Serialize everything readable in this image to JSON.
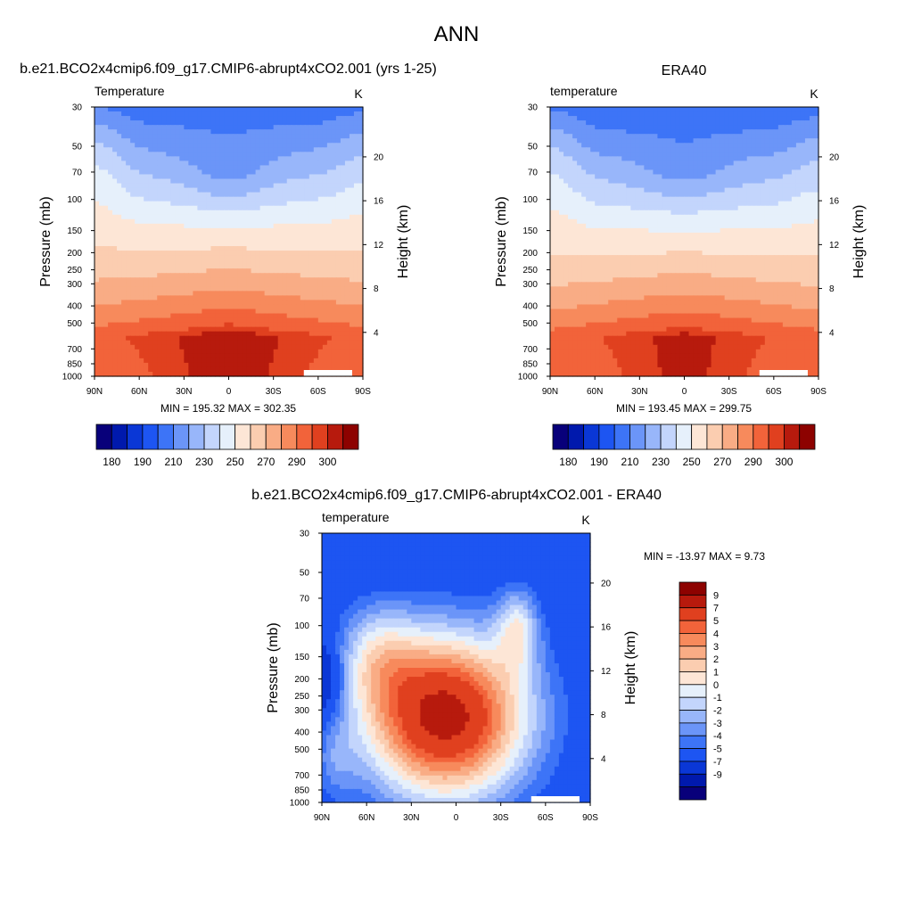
{
  "figure": {
    "season": "ANN",
    "top_left_title": "b.e21.BCO2x4cmip6.f09_g17.CMIP6-abrupt4xCO2.001 (yrs 1-25)",
    "top_right_title": "ERA40",
    "bottom_title": "b.e21.BCO2x4cmip6.f09_g17.CMIP6-abrupt4xCO2.001 - ERA40"
  },
  "chart_data": [
    {
      "type": "heatmap",
      "id": "model",
      "title": "b.e21.BCO2x4cmip6.f09_g17.CMIP6-abrupt4xCO2.001 (yrs 1-25)",
      "variable": "Temperature",
      "units": "K",
      "xlabel": "",
      "ylabel": "Pressure (mb)",
      "y2label": "Height (km)",
      "x_ticks": [
        "90N",
        "60N",
        "30N",
        "0",
        "30S",
        "60S",
        "90S"
      ],
      "y_ticks": [
        "30",
        "50",
        "70",
        "100",
        "150",
        "200",
        "250",
        "300",
        "400",
        "500",
        "700",
        "850",
        "1000"
      ],
      "y2_ticks": [
        "20",
        "16",
        "12",
        "8",
        "4"
      ],
      "min_max_text": "MIN = 195.32  MAX = 302.35",
      "min": 195.32,
      "max": 302.35,
      "colorbar_labels": [
        "180",
        "190",
        "210",
        "230",
        "250",
        "270",
        "290",
        "300"
      ],
      "contour_levels": [
        180,
        185,
        190,
        200,
        210,
        220,
        230,
        240,
        250,
        260,
        270,
        280,
        290,
        295,
        300
      ]
    },
    {
      "type": "heatmap",
      "id": "obs",
      "title": "ERA40",
      "variable": "temperature",
      "units": "K",
      "xlabel": "",
      "ylabel": "Pressure (mb)",
      "y2label": "Height (km)",
      "x_ticks": [
        "90N",
        "60N",
        "30N",
        "0",
        "30S",
        "60S",
        "90S"
      ],
      "y_ticks": [
        "30",
        "50",
        "70",
        "100",
        "150",
        "200",
        "250",
        "300",
        "400",
        "500",
        "700",
        "850",
        "1000"
      ],
      "y2_ticks": [
        "20",
        "16",
        "12",
        "8",
        "4"
      ],
      "min_max_text": "MIN = 193.45  MAX = 299.75",
      "min": 193.45,
      "max": 299.75,
      "colorbar_labels": [
        "180",
        "190",
        "210",
        "230",
        "250",
        "270",
        "290",
        "300"
      ],
      "contour_levels": [
        180,
        185,
        190,
        200,
        210,
        220,
        230,
        240,
        250,
        260,
        270,
        280,
        290,
        295,
        300
      ]
    },
    {
      "type": "heatmap",
      "id": "diff",
      "title": "b.e21.BCO2x4cmip6.f09_g17.CMIP6-abrupt4xCO2.001 - ERA40",
      "variable": "temperature",
      "units": "K",
      "xlabel": "",
      "ylabel": "Pressure (mb)",
      "y2label": "Height (km)",
      "x_ticks": [
        "90N",
        "60N",
        "30N",
        "0",
        "30S",
        "60S",
        "90S"
      ],
      "y_ticks": [
        "30",
        "50",
        "70",
        "100",
        "150",
        "200",
        "250",
        "300",
        "400",
        "500",
        "700",
        "850",
        "1000"
      ],
      "y2_ticks": [
        "20",
        "16",
        "12",
        "8",
        "4"
      ],
      "min_max_text": "MIN = -13.97  MAX =   9.73",
      "min": -13.97,
      "max": 9.73,
      "colorbar_labels": [
        "9",
        "7",
        "5",
        "4",
        "3",
        "2",
        "1",
        "0",
        "-1",
        "-2",
        "-3",
        "-4",
        "-5",
        "-7",
        "-9"
      ],
      "contour_levels": [
        -9,
        -7,
        -5,
        -4,
        -3,
        -2,
        -1,
        0,
        1,
        2,
        3,
        4,
        5,
        7,
        9
      ]
    }
  ],
  "colors": {
    "palette": [
      "#08007a",
      "#0019ad",
      "#0a37d6",
      "#1d55f2",
      "#3d74f7",
      "#6b95f8",
      "#98b6fa",
      "#c3d5fc",
      "#e6f0fb",
      "#fde6d6",
      "#fbcdb0",
      "#f9ac85",
      "#f78a5c",
      "#f2633a",
      "#e0401f",
      "#b71a0d",
      "#8d0200"
    ],
    "frame": "#000000"
  }
}
